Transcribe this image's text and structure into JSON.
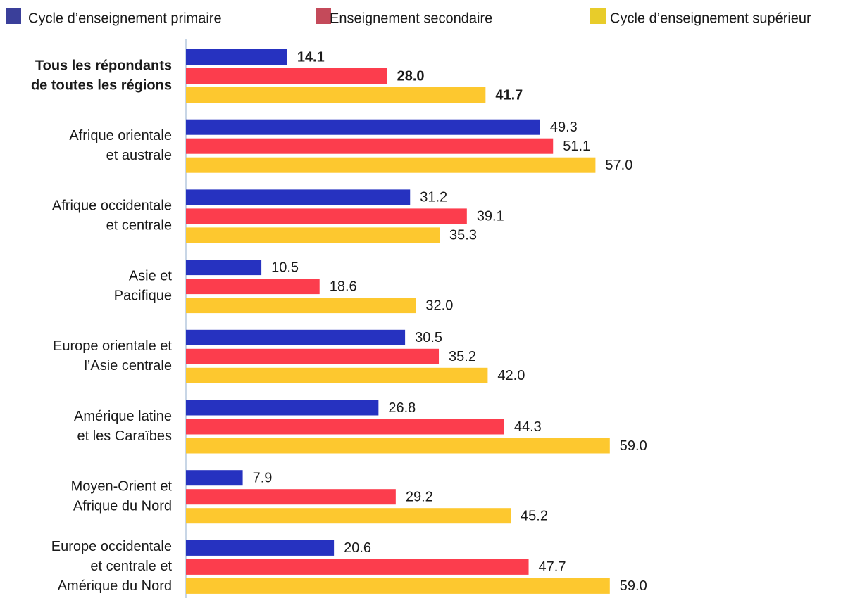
{
  "chart_data": {
    "type": "bar",
    "orientation": "horizontal",
    "categories": [
      [
        "Tous les répondants",
        "de toutes les régions"
      ],
      [
        "Afrique orientale",
        "et australe"
      ],
      [
        "Afrique occidentale",
        "et centrale"
      ],
      [
        "Asie et",
        "Pacifique"
      ],
      [
        "Europe orientale et",
        "l’Asie centrale"
      ],
      [
        "Amérique latine",
        "et les Caraïbes"
      ],
      [
        "Moyen-Orient et",
        "Afrique du Nord"
      ],
      [
        "Europe occidentale",
        "et centrale et",
        "Amérique du Nord"
      ]
    ],
    "series": [
      {
        "name": "Cycle d’enseignement primaire",
        "color": "#2632c0",
        "legend_color": "#3a3f9a",
        "values": [
          14.1,
          49.3,
          31.2,
          10.5,
          30.5,
          26.8,
          7.9,
          20.6
        ],
        "value_labels": [
          "14.1",
          "49.3",
          "31.2",
          "10.5",
          "30.5",
          "26.8",
          "7.9",
          "20.6"
        ]
      },
      {
        "name": "Enseignement secondaire",
        "color": "#fc3d4d",
        "legend_color": "#c44a5a",
        "values": [
          28.0,
          51.1,
          39.1,
          18.6,
          35.2,
          44.3,
          29.2,
          47.7
        ],
        "value_labels": [
          "28.0",
          "51.1",
          "39.1",
          "18.6",
          "35.2",
          "44.3",
          "29.2",
          "47.7"
        ]
      },
      {
        "name": "Cycle d’enseignement supérieur",
        "color": "#fdc82f",
        "legend_color": "#e8cc2a",
        "values": [
          41.7,
          57.0,
          35.3,
          32.0,
          42.0,
          59.0,
          45.2,
          59.0
        ],
        "value_labels": [
          "41.7",
          "57.0",
          "35.3",
          "32.0",
          "42.0",
          "59.0",
          "45.2",
          "59.0"
        ]
      }
    ],
    "xlim": [
      0,
      60
    ],
    "legend": "top"
  }
}
